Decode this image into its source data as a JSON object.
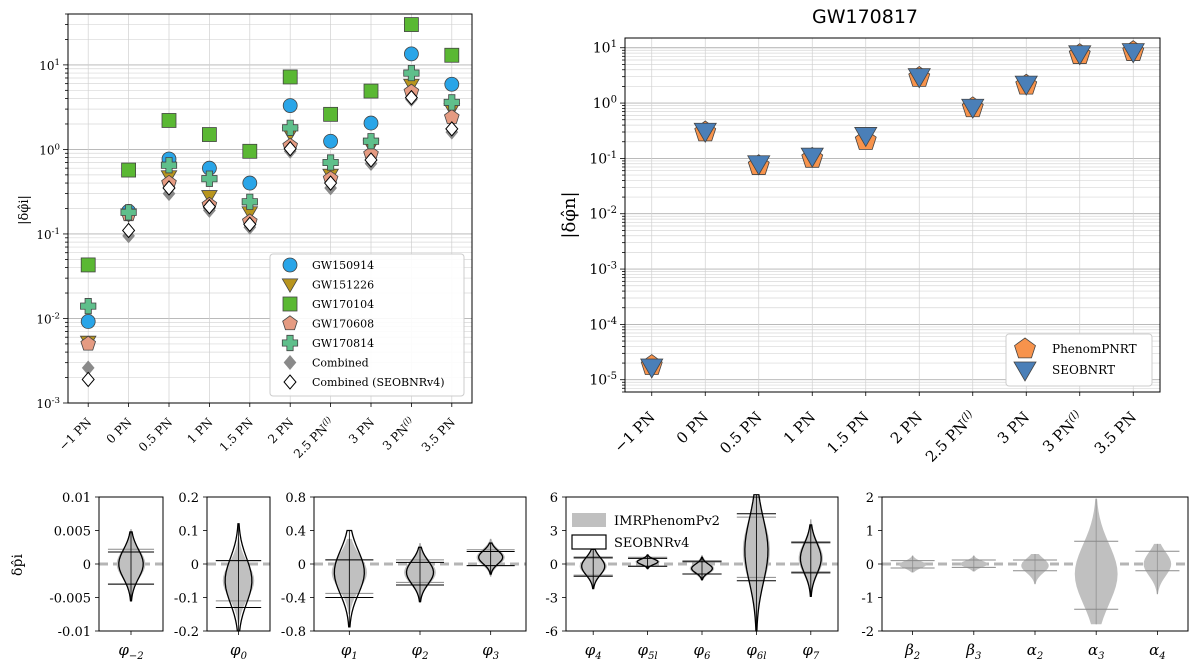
{
  "pn_labels": [
    "−1 PN",
    "0 PN",
    "0.5 PN",
    "1 PN",
    "1.5 PN",
    "2 PN",
    "2.5 PN(l)",
    "3 PN",
    "3 PN(l)",
    "3.5 PN"
  ],
  "chart_data": [
    {
      "type": "scatter",
      "title": "",
      "xlabel": "",
      "ylabel": "|δφ̂i|",
      "ylim": [
        0.001,
        40
      ],
      "yscale": "log",
      "grid": true,
      "legend_position": "lower-right",
      "categories": [
        "−1 PN",
        "0 PN",
        "0.5 PN",
        "1 PN",
        "1.5 PN",
        "2 PN",
        "2.5 PN(l)",
        "3 PN",
        "3 PN(l)",
        "3.5 PN"
      ],
      "series": [
        {
          "name": "GW150914",
          "marker": "circle",
          "color": "#29a5e8",
          "values": [
            0.0092,
            0.185,
            0.77,
            0.6,
            0.4,
            3.3,
            1.25,
            2.05,
            13.5,
            5.9
          ]
        },
        {
          "name": "GW151226",
          "marker": "triangle-down",
          "color": "#b8951e",
          "values": [
            0.0053,
            0.17,
            0.48,
            0.28,
            0.18,
            1.55,
            0.5,
            1.1,
            5.8,
            3.0
          ]
        },
        {
          "name": "GW170104",
          "marker": "square",
          "color": "#5ab833",
          "values": [
            0.043,
            0.57,
            2.2,
            1.5,
            0.95,
            7.2,
            2.6,
            4.9,
            30.0,
            13.0
          ]
        },
        {
          "name": "GW170608",
          "marker": "pentagon",
          "color": "#e59b82",
          "values": [
            0.005,
            0.17,
            0.4,
            0.22,
            0.14,
            1.1,
            0.45,
            0.88,
            4.8,
            2.4
          ]
        },
        {
          "name": "GW170814",
          "marker": "plus",
          "color": "#5fbf8b",
          "values": [
            0.014,
            0.18,
            0.65,
            0.45,
            0.24,
            1.8,
            0.7,
            1.25,
            8.0,
            3.6
          ]
        },
        {
          "name": "Combined",
          "marker": "diamond",
          "color": "#8a8a8a",
          "values": [
            0.0026,
            0.095,
            0.3,
            0.19,
            0.12,
            0.95,
            0.35,
            0.68,
            3.9,
            1.6
          ]
        },
        {
          "name": "Combined (SEOBNRv4)",
          "marker": "diamond-open",
          "color": "#ffffff",
          "values": [
            0.0019,
            0.11,
            0.35,
            0.21,
            0.13,
            1.02,
            0.4,
            0.75,
            4.1,
            1.75
          ]
        }
      ]
    },
    {
      "type": "scatter",
      "title": "GW170817",
      "xlabel": "",
      "ylabel": "|δφ̂n|",
      "ylim": [
        6e-06,
        15
      ],
      "yscale": "log",
      "grid": true,
      "legend_position": "lower-right",
      "categories": [
        "−1 PN",
        "0 PN",
        "0.5 PN",
        "1 PN",
        "1.5 PN",
        "2 PN",
        "2.5 PN(l)",
        "3 PN",
        "3 PN(l)",
        "3.5 PN"
      ],
      "series": [
        {
          "name": "PhenomPNRT",
          "marker": "pentagon",
          "color": "#f7934c",
          "values": [
            1.8e-05,
            0.3,
            0.074,
            0.1,
            0.21,
            2.9,
            0.82,
            2.1,
            7.5,
            8.5
          ]
        },
        {
          "name": "SEOBNRT",
          "marker": "triangle-down",
          "color": "#4a7fb8",
          "values": [
            1.7e-05,
            0.31,
            0.08,
            0.11,
            0.26,
            3.0,
            0.84,
            2.2,
            7.8,
            8.5
          ]
        }
      ]
    },
    {
      "type": "violin",
      "ylabel": "δp̂i",
      "legend": [
        "IMRPhenomPv2",
        "SEOBNRv4"
      ],
      "panels": [
        {
          "yticks": [
            "0.01",
            "0.005",
            "0",
            "-0.005",
            "-0.01"
          ],
          "ylim": [
            -0.01,
            0.01
          ],
          "params": [
            "φ−2"
          ],
          "violins": [
            {
              "center": 0,
              "width": 0.45,
              "imr": [
                -0.003,
                0.0022,
                -0.0052,
                0.0052
              ],
              "seob": [
                -0.003,
                0.0018,
                -0.0055,
                0.0048
              ]
            }
          ]
        },
        {
          "yticks": [
            "0.2",
            "0.1",
            "0",
            "-0.1",
            "-0.2"
          ],
          "ylim": [
            -0.2,
            0.2
          ],
          "params": [
            "φ0"
          ],
          "violins": [
            {
              "center": -0.05,
              "width": 0.5,
              "imr": [
                -0.11,
                0.01,
                -0.18,
                0.08
              ],
              "seob": [
                -0.13,
                0.01,
                -0.2,
                0.12
              ]
            }
          ]
        },
        {
          "yticks": [
            "0.8",
            "0.4",
            "0",
            "-0.4",
            "-0.8"
          ],
          "ylim": [
            -0.8,
            0.8
          ],
          "params": [
            "φ1",
            "φ2",
            "φ3"
          ],
          "violins": [
            {
              "center": -0.1,
              "width": 0.5,
              "imr": [
                -0.35,
                0.05,
                -0.6,
                0.3
              ],
              "seob": [
                -0.4,
                0.05,
                -0.75,
                0.4
              ]
            },
            {
              "center": -0.1,
              "width": 0.45,
              "imr": [
                -0.22,
                0.05,
                -0.4,
                0.25
              ],
              "seob": [
                -0.25,
                0.02,
                -0.45,
                0.2
              ]
            },
            {
              "center": 0.08,
              "width": 0.4,
              "imr": [
                -0.02,
                0.17,
                -0.15,
                0.3
              ],
              "seob": [
                -0.02,
                0.15,
                -0.12,
                0.25
              ]
            }
          ]
        },
        {
          "yticks": [
            "6",
            "3",
            "0",
            "-3",
            "-6"
          ],
          "ylim": [
            -6,
            6
          ],
          "params": [
            "φ4",
            "φ5l",
            "φ6",
            "φ6l",
            "φ7"
          ],
          "violins": [
            {
              "center": -0.2,
              "width": 0.5,
              "imr": [
                -1.0,
                0.5,
                -2.0,
                1.2
              ],
              "seob": [
                -1.1,
                0.6,
                -2.2,
                1.3
              ]
            },
            {
              "center": 0.2,
              "width": 0.45,
              "imr": [
                -0.2,
                0.6,
                -0.5,
                0.9
              ],
              "seob": [
                -0.2,
                0.5,
                -0.4,
                0.8
              ]
            },
            {
              "center": -0.4,
              "width": 0.45,
              "imr": [
                -0.9,
                0.3,
                -1.5,
                0.8
              ],
              "seob": [
                -0.9,
                0.2,
                -1.4,
                0.6
              ]
            },
            {
              "center": 1.2,
              "width": 0.5,
              "imr": [
                -1.2,
                4.2,
                -5.5,
                6.0
              ],
              "seob": [
                -1.5,
                4.5,
                -6.0,
                6.2
              ]
            },
            {
              "center": 0.5,
              "width": 0.45,
              "imr": [
                -0.7,
                2.0,
                -2.5,
                4.0
              ],
              "seob": [
                -0.8,
                1.9,
                -2.9,
                3.5
              ]
            }
          ]
        },
        {
          "yticks": [
            "2",
            "1",
            "0",
            "-1",
            "-2"
          ],
          "ylim": [
            -2,
            2
          ],
          "params": [
            "β2",
            "β3",
            "α2",
            "α3",
            "α4"
          ],
          "violins": [
            {
              "center": -0.02,
              "width": 0.45,
              "imr": [
                -0.12,
                0.1,
                -0.25,
                0.25
              ]
            },
            {
              "center": 0.0,
              "width": 0.45,
              "imr": [
                -0.1,
                0.12,
                -0.22,
                0.25
              ]
            },
            {
              "center": -0.05,
              "width": 0.45,
              "imr": [
                -0.2,
                0.12,
                -0.6,
                0.3
              ]
            },
            {
              "center": -0.3,
              "width": 0.7,
              "imr": [
                -1.35,
                0.68,
                -1.8,
                1.95
              ]
            },
            {
              "center": 0.0,
              "width": 0.45,
              "imr": [
                -0.2,
                0.38,
                -0.9,
                0.6
              ]
            }
          ]
        }
      ]
    }
  ]
}
